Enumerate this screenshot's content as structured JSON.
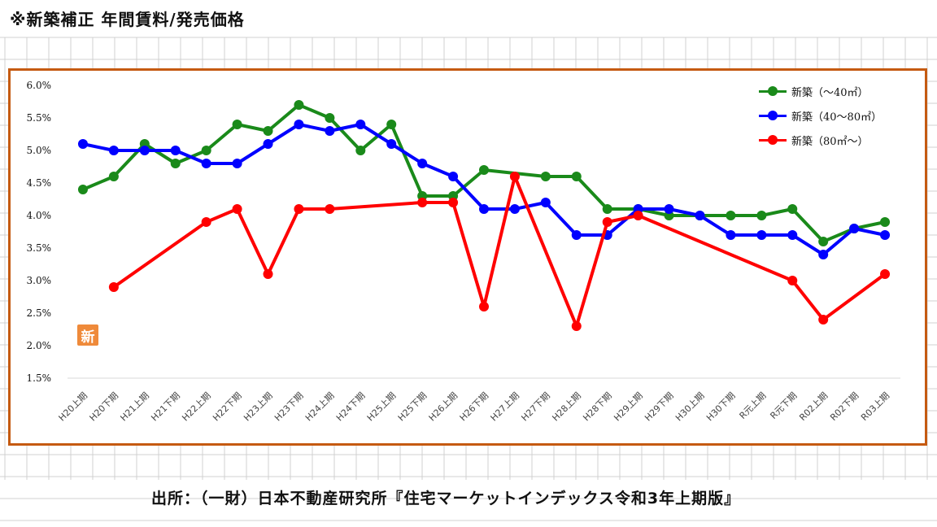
{
  "page": {
    "title": "※新築補正 年間賃料/発売価格",
    "source": "出所：（一財）日本不動産研究所『住宅マーケットインデックス令和3年上期版』",
    "badge": "新"
  },
  "colors": {
    "frame": "#c55a11",
    "grid": "#d0d0d0",
    "series": [
      "#1a8a1a",
      "#0000ff",
      "#ff0000"
    ]
  },
  "chart_data": {
    "type": "line",
    "title": "",
    "xlabel": "",
    "ylabel": "",
    "ylim": [
      1.5,
      6.0
    ],
    "y_ticks": [
      "1.5%",
      "2.0%",
      "2.5%",
      "3.0%",
      "3.5%",
      "4.0%",
      "4.5%",
      "5.0%",
      "5.5%",
      "6.0%"
    ],
    "y_tick_values": [
      1.5,
      2.0,
      2.5,
      3.0,
      3.5,
      4.0,
      4.5,
      5.0,
      5.5,
      6.0
    ],
    "legend_position": "top-right",
    "categories": [
      "H20上期",
      "H20下期",
      "H21上期",
      "H21下期",
      "H22上期",
      "H22下期",
      "H23上期",
      "H23下期",
      "H24上期",
      "H24下期",
      "H25上期",
      "H25下期",
      "H26上期",
      "H26下期",
      "H27上期",
      "H27下期",
      "H28上期",
      "H28下期",
      "H29上期",
      "H29下期",
      "H30上期",
      "H30下期",
      "R元上期",
      "R元下期",
      "R02上期",
      "R02下期",
      "R03上期"
    ],
    "series": [
      {
        "name": "新築（～40㎡）",
        "values": [
          4.4,
          4.6,
          5.1,
          4.8,
          5.0,
          5.4,
          5.3,
          5.7,
          5.5,
          5.0,
          5.4,
          4.3,
          4.3,
          4.7,
          null,
          4.6,
          4.6,
          4.1,
          4.1,
          4.0,
          4.0,
          4.0,
          4.0,
          4.1,
          3.6,
          3.8,
          3.9
        ]
      },
      {
        "name": "新築（40～80㎡）",
        "values": [
          5.1,
          5.0,
          5.0,
          5.0,
          4.8,
          4.8,
          5.1,
          5.4,
          5.3,
          5.4,
          5.1,
          4.8,
          4.6,
          4.1,
          4.1,
          4.2,
          3.7,
          3.7,
          4.1,
          4.1,
          4.0,
          3.7,
          3.7,
          3.7,
          3.4,
          3.8,
          3.7
        ]
      },
      {
        "name": "新築（80㎡～）",
        "values": [
          null,
          2.9,
          null,
          null,
          3.9,
          4.1,
          3.1,
          4.1,
          4.1,
          null,
          null,
          4.2,
          4.2,
          2.6,
          4.6,
          null,
          2.3,
          3.9,
          4.0,
          null,
          null,
          null,
          null,
          3.0,
          2.4,
          null,
          3.1
        ]
      }
    ]
  }
}
